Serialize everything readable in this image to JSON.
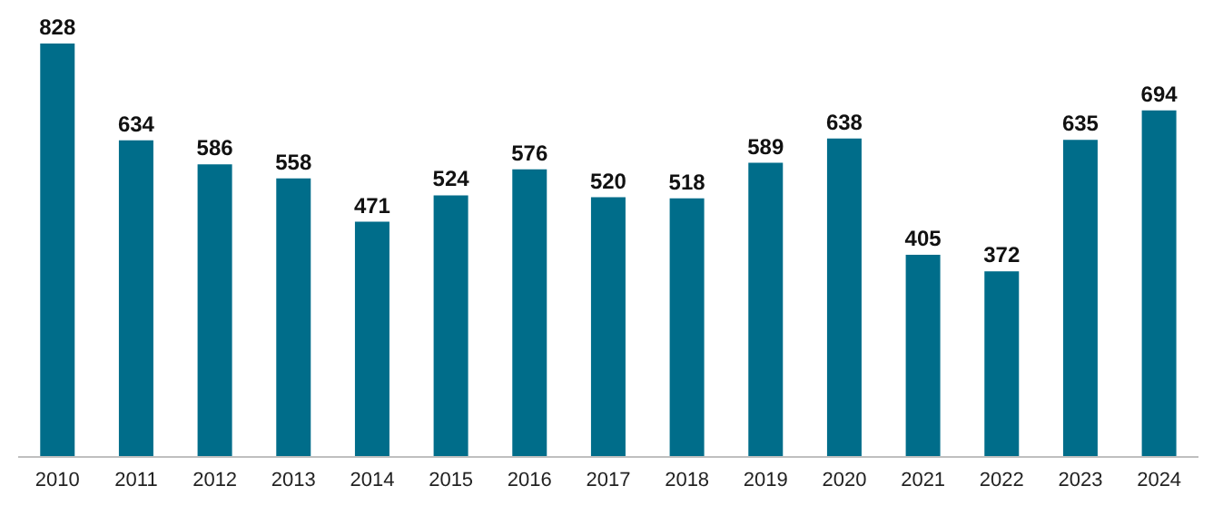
{
  "chart_data": {
    "type": "bar",
    "categories": [
      "2010",
      "2011",
      "2012",
      "2013",
      "2014",
      "2015",
      "2016",
      "2017",
      "2018",
      "2019",
      "2020",
      "2021",
      "2022",
      "2023",
      "2024"
    ],
    "values": [
      828,
      634,
      586,
      558,
      471,
      524,
      576,
      520,
      518,
      589,
      638,
      405,
      372,
      635,
      694
    ],
    "color": "#006d8a",
    "data_labels": true
  }
}
